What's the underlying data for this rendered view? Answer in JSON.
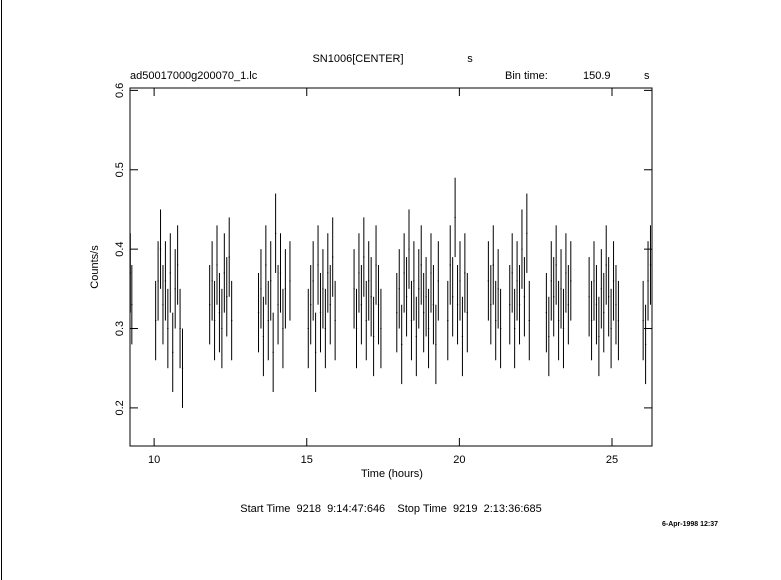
{
  "chart_data": {
    "type": "errorbar",
    "title": "SN1006[CENTER]",
    "title_unit": "s",
    "file_name": "ad50017000g200070_1.lc",
    "bin_time_label": "Bin time:",
    "bin_time": "150.9",
    "bin_time_unit": "s",
    "x_label": "Time (hours)",
    "y_label": "Counts/s",
    "footer": "Start Time  9218  9:14:47:646    Stop Time  9219  2:13:36:685",
    "date": "6-Apr-1998 12:37",
    "xlim": [
      9.21,
      26.31
    ],
    "ylim": [
      0.152,
      0.603
    ],
    "xticks": [
      10,
      15,
      20,
      25
    ],
    "yticks": [
      0.2,
      0.3,
      0.4,
      0.5,
      0.6
    ],
    "yerr": 0.05,
    "color": "#000000",
    "x": [
      9.22,
      9.27,
      10.05,
      10.13,
      10.21,
      10.29,
      10.37,
      10.45,
      10.53,
      10.61,
      10.69,
      10.77,
      10.85,
      10.93,
      11.82,
      11.9,
      11.98,
      12.06,
      12.14,
      12.22,
      12.3,
      12.38,
      12.46,
      12.54,
      13.42,
      13.5,
      13.58,
      13.66,
      13.74,
      13.82,
      13.9,
      13.98,
      14.06,
      14.14,
      14.22,
      14.3,
      14.45,
      15.05,
      15.13,
      15.21,
      15.29,
      15.37,
      15.45,
      15.53,
      15.61,
      15.69,
      15.77,
      15.85,
      15.93,
      16.55,
      16.63,
      16.71,
      16.79,
      16.87,
      16.95,
      17.03,
      17.11,
      17.19,
      17.27,
      17.35,
      17.43,
      17.95,
      18.03,
      18.11,
      18.19,
      18.27,
      18.35,
      18.43,
      18.51,
      18.59,
      18.67,
      18.75,
      18.83,
      18.91,
      18.99,
      19.07,
      19.15,
      19.23,
      19.31,
      19.62,
      19.7,
      19.78,
      19.86,
      19.94,
      20.02,
      20.1,
      20.18,
      20.26,
      20.95,
      21.03,
      21.11,
      21.19,
      21.27,
      21.35,
      21.65,
      21.73,
      21.81,
      21.89,
      21.97,
      22.05,
      22.13,
      22.21,
      22.29,
      22.85,
      22.93,
      23.01,
      23.09,
      23.17,
      23.25,
      23.33,
      23.41,
      23.49,
      23.57,
      23.65,
      24.25,
      24.33,
      24.41,
      24.49,
      24.57,
      24.65,
      24.73,
      24.81,
      24.89,
      24.97,
      25.05,
      25.13,
      25.21,
      26.02,
      26.1,
      26.18,
      26.26
    ],
    "values": [
      0.37,
      0.33,
      0.31,
      0.36,
      0.4,
      0.33,
      0.36,
      0.3,
      0.37,
      0.27,
      0.35,
      0.38,
      0.3,
      0.25,
      0.33,
      0.36,
      0.31,
      0.38,
      0.32,
      0.3,
      0.37,
      0.34,
      0.39,
      0.31,
      0.32,
      0.35,
      0.29,
      0.38,
      0.31,
      0.36,
      0.27,
      0.42,
      0.33,
      0.37,
      0.3,
      0.35,
      0.36,
      0.3,
      0.33,
      0.36,
      0.27,
      0.38,
      0.32,
      0.35,
      0.3,
      0.37,
      0.33,
      0.39,
      0.31,
      0.35,
      0.3,
      0.37,
      0.33,
      0.39,
      0.31,
      0.36,
      0.34,
      0.29,
      0.38,
      0.33,
      0.3,
      0.32,
      0.35,
      0.28,
      0.37,
      0.34,
      0.4,
      0.31,
      0.36,
      0.29,
      0.35,
      0.38,
      0.32,
      0.34,
      0.3,
      0.37,
      0.33,
      0.28,
      0.36,
      0.31,
      0.38,
      0.34,
      0.44,
      0.33,
      0.36,
      0.29,
      0.37,
      0.32,
      0.36,
      0.33,
      0.38,
      0.31,
      0.35,
      0.3,
      0.33,
      0.37,
      0.3,
      0.36,
      0.33,
      0.4,
      0.34,
      0.42,
      0.31,
      0.32,
      0.29,
      0.36,
      0.34,
      0.38,
      0.31,
      0.35,
      0.3,
      0.37,
      0.33,
      0.36,
      0.34,
      0.31,
      0.36,
      0.33,
      0.29,
      0.35,
      0.32,
      0.38,
      0.34,
      0.3,
      0.36,
      0.33,
      0.31,
      0.31,
      0.28,
      0.36,
      0.38
    ]
  }
}
